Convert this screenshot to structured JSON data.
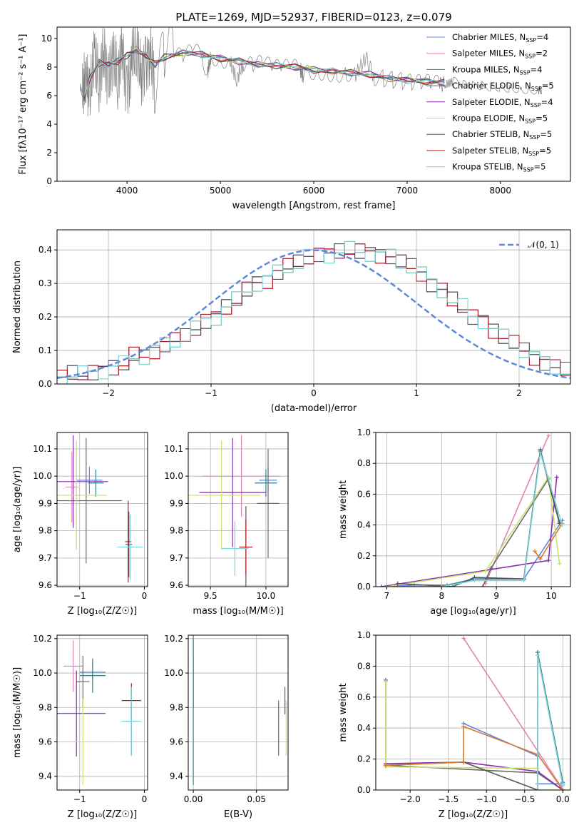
{
  "title": "PLATE=1269, MJD=52937, FIBERID=0123, z=0.079",
  "model_colors": [
    "#5f87d9",
    "#e183b8",
    "#2f7e8a",
    "#6b6b6b",
    "#8b2bb1",
    "#c7e36b",
    "#555555",
    "#b51a1a",
    "#7ad3d8"
  ],
  "chart_data": [
    {
      "id": "spectrum",
      "type": "line",
      "title": "PLATE=1269, MJD=52937, FIBERID=0123, z=0.079",
      "xlabel": "wavelength [Angstrom, rest frame]",
      "ylabel": "Flux [fλ10⁻¹⁷ erg cm⁻² s⁻¹ A⁻¹]",
      "xlim": [
        3250,
        8750
      ],
      "ylim": [
        0,
        10.8
      ],
      "xticks": [
        4000,
        5000,
        6000,
        7000,
        8000
      ],
      "yticks": [
        0,
        2,
        4,
        6,
        8,
        10
      ],
      "grid": false,
      "legend_position": "top-right",
      "legend": [
        {
          "label": "Chabrier MILES, N",
          "sub": "SSP",
          "suffix": "=4",
          "color": "#5f87d9"
        },
        {
          "label": "Salpeter MILES, N",
          "sub": "SSP",
          "suffix": "=2",
          "color": "#e183b8"
        },
        {
          "label": "Kroupa MILES, N",
          "sub": "SSP",
          "suffix": "=4",
          "color": "#2f7e8a"
        },
        {
          "label": "Chabrier ELODIE, N",
          "sub": "SSP",
          "suffix": "=5",
          "color": "#6b6b6b"
        },
        {
          "label": "Salpeter ELODIE, N",
          "sub": "SSP",
          "suffix": "=4",
          "color": "#8b2bb1"
        },
        {
          "label": "Kroupa ELODIE, N",
          "sub": "SSP",
          "suffix": "=5",
          "color": "#c7e36b"
        },
        {
          "label": "Chabrier STELIB, N",
          "sub": "SSP",
          "suffix": "=5",
          "color": "#555555"
        },
        {
          "label": "Salpeter STELIB, N",
          "sub": "SSP",
          "suffix": "=5",
          "color": "#b51a1a"
        },
        {
          "label": "Kroupa STELIB, N",
          "sub": "SSP",
          "suffix": "=5",
          "color": "#7ad3d8"
        }
      ],
      "data_series": {
        "name": "",
        "color": "#808080",
        "x": [
          3520,
          3560,
          3600,
          3650,
          3700,
          3750,
          3800,
          3850,
          3900,
          3950,
          4000,
          4050,
          4100,
          4150,
          4200,
          4250,
          4300,
          4400,
          4500,
          4600,
          4700,
          4800,
          4860,
          4900,
          5000,
          5100,
          5175,
          5250,
          5350,
          5450,
          5550,
          5650,
          5750,
          5850,
          5890,
          5950,
          6050,
          6150,
          6250,
          6350,
          6450,
          6560,
          6650,
          6750,
          6850,
          6950,
          7050,
          7150,
          7250,
          7350,
          7420,
          7500,
          7600,
          7700,
          7800,
          7900,
          8000,
          8100,
          8200,
          8300,
          8400,
          8450
        ],
        "y": [
          6.2,
          7.6,
          5.8,
          8.8,
          7.0,
          9.4,
          6.8,
          8.6,
          7.2,
          9.6,
          6.0,
          8.4,
          9.4,
          7.4,
          8.2,
          9.0,
          6.6,
          8.8,
          9.0,
          8.6,
          9.2,
          8.8,
          7.6,
          8.7,
          8.6,
          8.4,
          7.2,
          8.2,
          8.1,
          8.3,
          8.0,
          7.9,
          8.0,
          7.9,
          7.3,
          7.7,
          7.7,
          7.6,
          7.5,
          7.6,
          7.5,
          8.6,
          7.3,
          7.2,
          7.1,
          7.0,
          6.9,
          6.9,
          6.9,
          6.8,
          6.8,
          7.0,
          6.8,
          6.7,
          6.7,
          6.6,
          6.6,
          6.5,
          6.5,
          6.4,
          6.4,
          6.3
        ]
      },
      "model_x": [
        3500,
        3540,
        3600,
        3700,
        3800,
        3900,
        4000,
        4100,
        4200,
        4300,
        4400,
        4600,
        4800,
        5000,
        5200,
        5400,
        5600,
        5800,
        6000,
        6200,
        6400,
        6600,
        6800,
        7000,
        7200,
        7400
      ],
      "model_y": [
        6.6,
        5.6,
        7.2,
        8.3,
        8.2,
        8.4,
        8.8,
        9.2,
        8.8,
        8.2,
        8.7,
        9.0,
        8.9,
        8.6,
        8.4,
        8.2,
        8.1,
        8.0,
        7.8,
        7.7,
        7.6,
        7.5,
        7.2,
        7.1,
        7.0,
        6.9
      ]
    },
    {
      "id": "residuals",
      "type": "line",
      "xlabel": "(data-model)/error",
      "ylabel": "Normed distribution",
      "xlim": [
        -2.5,
        2.5
      ],
      "ylim": [
        0,
        0.46
      ],
      "xticks": [
        -2,
        -1,
        0,
        1,
        2
      ],
      "yticks": [
        0.0,
        0.1,
        0.2,
        0.3,
        0.4
      ],
      "grid": true,
      "legend_position": "top-right",
      "legend": [
        {
          "label": "𝒩(0, 1)",
          "color": "#5f87d9",
          "style": "dashed"
        }
      ],
      "bin_width": 0.1,
      "bin_start": -2.5,
      "histogram": [
        0.02,
        0.03,
        0.03,
        0.035,
        0.04,
        0.05,
        0.06,
        0.085,
        0.08,
        0.1,
        0.12,
        0.13,
        0.14,
        0.165,
        0.19,
        0.2,
        0.23,
        0.25,
        0.28,
        0.3,
        0.31,
        0.335,
        0.35,
        0.36,
        0.38,
        0.39,
        0.385,
        0.395,
        0.4,
        0.395,
        0.39,
        0.385,
        0.38,
        0.36,
        0.35,
        0.33,
        0.3,
        0.28,
        0.25,
        0.23,
        0.2,
        0.19,
        0.16,
        0.14,
        0.12,
        0.1,
        0.08,
        0.065,
        0.05,
        0.04
      ]
    },
    {
      "id": "age-vs-z",
      "type": "scatter",
      "xlabel": "Z [log₁₀(Z/Z☉)]",
      "ylabel": "age  [log₁₀(age/yr)]",
      "xlim": [
        -1.35,
        0.05
      ],
      "ylim": [
        9.595,
        10.16
      ],
      "xticks": [
        -1,
        0
      ],
      "yticks": [
        9.6,
        9.7,
        9.8,
        9.9,
        10.0,
        10.1
      ],
      "grid": true,
      "points": [
        {
          "x": -0.85,
          "y": 9.985,
          "xerr": 0.2,
          "yerr": 0.05
        },
        {
          "x": -1.12,
          "y": 9.96,
          "xerr": 0.1,
          "yerr": 0.13
        },
        {
          "x": -0.75,
          "y": 9.975,
          "xerr": 0.12,
          "yerr": 0.05
        },
        {
          "x": -0.9,
          "y": 9.91,
          "xerr": 0.55,
          "yerr": 0.23
        },
        {
          "x": -1.1,
          "y": 9.98,
          "xerr": 0.54,
          "yerr": 0.17
        },
        {
          "x": -1.05,
          "y": 9.93,
          "xerr": 0.47,
          "yerr": 0.2
        },
        {
          "x": -0.24,
          "y": 9.75,
          "xerr": 0.05,
          "yerr": 0.12
        },
        {
          "x": -0.25,
          "y": 9.76,
          "xerr": 0.05,
          "yerr": 0.15
        },
        {
          "x": -0.22,
          "y": 9.74,
          "xerr": 0.2,
          "yerr": 0.12
        }
      ]
    },
    {
      "id": "age-vs-mass",
      "type": "scatter",
      "xlabel": "mass [log₁₀(M/M☉)]",
      "ylabel": "",
      "xlim": [
        9.3,
        10.2
      ],
      "ylim": [
        9.595,
        10.16
      ],
      "xticks": [
        9.5,
        10.0
      ],
      "yticks": [
        9.6,
        9.7,
        9.8,
        9.9,
        10.0,
        10.1
      ],
      "grid": true,
      "points": [
        {
          "x": 10.02,
          "y": 9.985,
          "xerr": 0.08,
          "yerr": 0.05
        },
        {
          "x": 9.78,
          "y": 10.0,
          "xerr": 0.35,
          "yerr": 0.15
        },
        {
          "x": 10.0,
          "y": 9.975,
          "xerr": 0.1,
          "yerr": 0.05
        },
        {
          "x": 10.02,
          "y": 9.9,
          "xerr": 0.1,
          "yerr": 0.2
        },
        {
          "x": 9.7,
          "y": 9.94,
          "xerr": 0.3,
          "yerr": 0.2
        },
        {
          "x": 9.6,
          "y": 9.93,
          "xerr": 0.35,
          "yerr": 0.2
        },
        {
          "x": 9.82,
          "y": 9.74,
          "xerr": 0.06,
          "yerr": 0.15
        },
        {
          "x": 9.82,
          "y": 9.74,
          "xerr": 0.06,
          "yerr": 0.1
        },
        {
          "x": 9.72,
          "y": 9.735,
          "xerr": 0.12,
          "yerr": 0.1
        }
      ]
    },
    {
      "id": "mass-weight-vs-age",
      "type": "line",
      "xlabel": "age  [log₁₀(age/yr)]",
      "ylabel": "mass weight",
      "xlim": [
        6.8,
        10.35
      ],
      "ylim": [
        0,
        1
      ],
      "xticks": [
        7,
        8,
        9,
        10
      ],
      "yticks": [
        0.0,
        0.2,
        0.4,
        0.6,
        0.8,
        1.0
      ],
      "grid": true,
      "series": [
        {
          "name": "",
          "color": "#5f87d9",
          "x": [
            7.0,
            7.5,
            8.1,
            8.6,
            9.5,
            10.2
          ],
          "y": [
            0.0,
            0.01,
            0.01,
            0.05,
            0.05,
            0.43
          ]
        },
        {
          "name": "",
          "color": "#e183b8",
          "x": [
            8.8,
            9.95
          ],
          "y": [
            0.02,
            0.98
          ]
        },
        {
          "name": "",
          "color": "#2f7e8a",
          "x": [
            7.0,
            8.0,
            8.6,
            9.5,
            9.8,
            10.15
          ],
          "y": [
            0.0,
            0.0,
            0.05,
            0.05,
            0.89,
            0.42
          ]
        },
        {
          "name": "",
          "color": "#6b6b6b",
          "x": [
            8.75,
            8.9,
            9.95
          ],
          "y": [
            0.0,
            0.12,
            0.7
          ]
        },
        {
          "name": "",
          "color": "#8b2bb1",
          "x": [
            6.9,
            9.95,
            10.1
          ],
          "y": [
            0.0,
            0.17,
            0.71
          ]
        },
        {
          "name": "",
          "color": "#c7e36b",
          "x": [
            7.0,
            8.8,
            9.95,
            10.15
          ],
          "y": [
            0.0,
            0.1,
            0.71,
            0.15
          ]
        },
        {
          "name": "",
          "color": "#555555",
          "x": [
            7.2,
            8.2,
            8.6,
            9.5,
            9.8,
            10.15
          ],
          "y": [
            0.02,
            0.0,
            0.06,
            0.05,
            0.88,
            0.41
          ]
        },
        {
          "name": "",
          "color": "#d97a2b",
          "x": [
            9.7,
            9.8,
            10.2
          ],
          "y": [
            0.23,
            0.18,
            0.41
          ]
        },
        {
          "name": "",
          "color": "#7ad3d8",
          "x": [
            7.0,
            8.0,
            8.6,
            9.5,
            9.8,
            10.2
          ],
          "y": [
            0.0,
            0.0,
            0.04,
            0.04,
            0.87,
            0.4
          ]
        }
      ]
    },
    {
      "id": "mass-vs-z",
      "type": "scatter",
      "xlabel": "Z [log₁₀(Z/Z☉)]",
      "ylabel": "mass [log₁₀(M/M☉)]",
      "xlim": [
        -1.35,
        0.05
      ],
      "ylim": [
        9.32,
        10.22
      ],
      "xticks": [
        -1,
        0
      ],
      "yticks": [
        9.4,
        9.6,
        9.8,
        10.0,
        10.2
      ],
      "grid": true,
      "points": [
        {
          "x": -0.8,
          "y": 10.005,
          "xerr": 0.2,
          "yerr": 0.05
        },
        {
          "x": -1.1,
          "y": 10.04,
          "xerr": 0.15,
          "yerr": 0.15
        },
        {
          "x": -0.8,
          "y": 9.985,
          "xerr": 0.2,
          "yerr": 0.1
        },
        {
          "x": -0.95,
          "y": 9.95,
          "xerr": 0.1,
          "yerr": 0.15
        },
        {
          "x": -1.05,
          "y": 9.765,
          "xerr": 0.45,
          "yerr": 0.25
        },
        {
          "x": -0.95,
          "y": 9.6,
          "xerr": 0.5,
          "yerr": 0.25
        },
        {
          "x": -0.2,
          "y": 9.72,
          "xerr": 0.1,
          "yerr": 0.2
        },
        {
          "x": -0.2,
          "y": 9.84,
          "xerr": 0.15,
          "yerr": 0.1
        },
        {
          "x": -0.2,
          "y": 9.72,
          "xerr": 0.15,
          "yerr": 0.2
        }
      ]
    },
    {
      "id": "mass-vs-ebv",
      "type": "scatter",
      "xlabel": "E(B-V)",
      "ylabel": "",
      "xlim": [
        -0.004,
        0.075
      ],
      "ylim": [
        9.32,
        10.22
      ],
      "xticks": [
        0.0,
        0.05
      ],
      "yticks": [
        9.4,
        9.6,
        9.8,
        10.0,
        10.2
      ],
      "grid": true,
      "points": [
        {
          "x": 0.0,
          "y": 10.0,
          "xerr": 0.0,
          "yerr": 0.2
        },
        {
          "x": 0.0,
          "y": 9.95,
          "xerr": 0.0,
          "yerr": 0.15
        },
        {
          "x": 0.0,
          "y": 9.8,
          "xerr": 0.0,
          "yerr": 0.45
        },
        {
          "x": 0.0675,
          "y": 9.68,
          "xerr": 0.0,
          "yerr": 0.16
        },
        {
          "x": 0.0725,
          "y": 9.84,
          "xerr": 0.0,
          "yerr": 0.08
        },
        {
          "x": 0.0735,
          "y": 9.68,
          "xerr": 0.0,
          "yerr": 0.16
        }
      ]
    },
    {
      "id": "mass-weight-vs-z",
      "type": "line",
      "xlabel": "Z [log₁₀(Z/Z☉)]",
      "ylabel": "mass weight",
      "xlim": [
        -2.45,
        0.1
      ],
      "ylim": [
        0,
        1
      ],
      "xticks": [
        -2.0,
        -1.5,
        -1.0,
        -0.5,
        0.0
      ],
      "yticks": [
        0.0,
        0.2,
        0.4,
        0.6,
        0.8,
        1.0
      ],
      "grid": true,
      "series": [
        {
          "name": "",
          "color": "#5f87d9",
          "x": [
            -1.3,
            -0.33,
            -0.33,
            0.0
          ],
          "y": [
            0.43,
            0.22,
            0.04,
            0.04
          ]
        },
        {
          "name": "",
          "color": "#e183b8",
          "x": [
            -1.3,
            -0.02
          ],
          "y": [
            0.98,
            0.02
          ]
        },
        {
          "name": "",
          "color": "#2f7e8a",
          "x": [
            -0.33,
            -0.33,
            0.0
          ],
          "y": [
            0.0,
            0.89,
            0.05
          ]
        },
        {
          "name": "",
          "color": "#6b6b6b",
          "x": [
            -2.32,
            -0.33,
            0.0
          ],
          "y": [
            0.16,
            0.11,
            0.0
          ]
        },
        {
          "name": "",
          "color": "#8b2bb1",
          "x": [
            -2.32,
            -2.32,
            -1.3,
            -1.3,
            -0.33,
            0.0
          ],
          "y": [
            0.71,
            0.17,
            0.18,
            0.18,
            0.12,
            0.0
          ]
        },
        {
          "name": "",
          "color": "#c7e36b",
          "x": [
            -2.32,
            -2.32,
            -0.33,
            -0.33,
            0.0
          ],
          "y": [
            0.7,
            0.15,
            0.14,
            0.0,
            0.0
          ]
        },
        {
          "name": "",
          "color": "#555555",
          "x": [
            -2.32,
            -1.3,
            -0.33
          ],
          "y": [
            0.16,
            0.18,
            0.0
          ]
        },
        {
          "name": "",
          "color": "#d97a2b",
          "x": [
            -2.32,
            -1.3,
            -1.3,
            -0.33,
            0.0
          ],
          "y": [
            0.16,
            0.18,
            0.41,
            0.23,
            0.0
          ]
        },
        {
          "name": "",
          "color": "#7ad3d8",
          "x": [
            -0.33,
            -0.33,
            0.0
          ],
          "y": [
            0.0,
            0.87,
            0.03
          ]
        }
      ]
    }
  ]
}
